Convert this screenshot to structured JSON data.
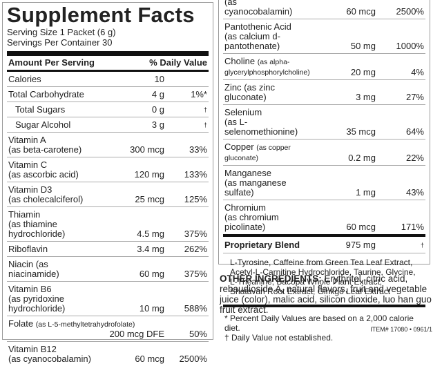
{
  "left": {
    "title": "Supplement Facts",
    "serving_size": "Serving Size 1 Packet (6 g)",
    "servings": "Servings Per Container 30",
    "header": {
      "amount": "Amount Per Serving",
      "dv": "% Daily Value"
    },
    "rows": [
      {
        "name": "Calories",
        "amount": "10"
      },
      {
        "name": "Total Carbohydrate",
        "amount": "4 g",
        "dv": "1%*"
      },
      {
        "name": "Total Sugars",
        "amount": "0 g",
        "dv": "†"
      },
      {
        "name": "Sugar Alcohol",
        "amount": "3 g",
        "dv": "†"
      },
      {
        "name": "Vitamin A",
        "detail": "(as beta-carotene)",
        "amount": "300 mcg",
        "dv": "33%"
      },
      {
        "name": "Vitamin C",
        "detail": "(as ascorbic acid)",
        "amount": "120 mg",
        "dv": "133%"
      },
      {
        "name": "Vitamin D3",
        "detail": "(as cholecalciferol)",
        "amount": "25 mcg",
        "dv": "125%"
      },
      {
        "name": "Thiamin",
        "detail": "(as thiamine hydrochloride)",
        "amount": "4.5 mg",
        "dv": "375%"
      },
      {
        "name": "Riboflavin",
        "amount": "3.4 mg",
        "dv": "262%"
      },
      {
        "name": "Niacin",
        "detail": "(as niacinamide)",
        "amount": "60 mg",
        "dv": "375%"
      },
      {
        "name": "Vitamin B6",
        "detail": "(as pyridoxine hydrochloride)",
        "amount": "10 mg",
        "dv": "588%"
      },
      {
        "name": "Folate",
        "detail": "(as L-5-methyltetrahydrofolate)",
        "amount": "200 mcg DFE",
        "dv": "50%"
      },
      {
        "name": "Vitamin B12",
        "detail": "(as cyanocobalamin)",
        "amount": "60 mcg",
        "dv": "2500%"
      }
    ]
  },
  "right": {
    "rows": [
      {
        "name": "(as cyanocobalamin)",
        "amount": "60 mcg",
        "dv": "2500%"
      },
      {
        "name": "Pantothenic Acid",
        "detail": "(as calcium d-pantothenate)",
        "amount": "50 mg",
        "dv": "1000%"
      },
      {
        "name": "Choline",
        "detail": "(as alpha-glycerylphosphorylcholine)",
        "amount": "20 mg",
        "dv": "4%"
      },
      {
        "name": "Zinc",
        "detail": "(as zinc gluconate)",
        "amount": "3 mg",
        "dv": "27%"
      },
      {
        "name": "Selenium",
        "detail": "(as L-selenomethionine)",
        "amount": "35 mcg",
        "dv": "64%"
      },
      {
        "name": "Copper",
        "detail": "(as copper gluconate)",
        "amount": "0.2 mg",
        "dv": "22%"
      },
      {
        "name": "Manganese",
        "detail": "(as manganese sulfate)",
        "amount": "1 mg",
        "dv": "43%"
      },
      {
        "name": "Chromium",
        "detail": "(as chromium picolinate)",
        "amount": "60 mcg",
        "dv": "171%"
      }
    ],
    "blend": {
      "name": "Proprietary Blend",
      "amount": "975 mg",
      "dv": "†",
      "ingredients": "L-Tyrosine, Caffeine from Green Tea Leaf Extract, Acetyl-L-Carnitine Hydrochloride, Taurine, Glycine, L-Theanine, Bacopa Whole Plant Extract, Shatavari Root Extract, Ginkgo Leaf Extract"
    },
    "footnotes": [
      "* Percent Daily Values are based on a 2,000 calorie diet.",
      "† Daily Value not established."
    ]
  },
  "other_ingredients": {
    "label": "OTHER INGREDIENTS:",
    "text": "Erythritol, citric acid, rebaudioside A, natural flavors, fruit and vegetable juice (color), malic acid, silicon dioxide, luo han guo fruit extract."
  },
  "item": "ITEM# 17080 • 0961/1"
}
